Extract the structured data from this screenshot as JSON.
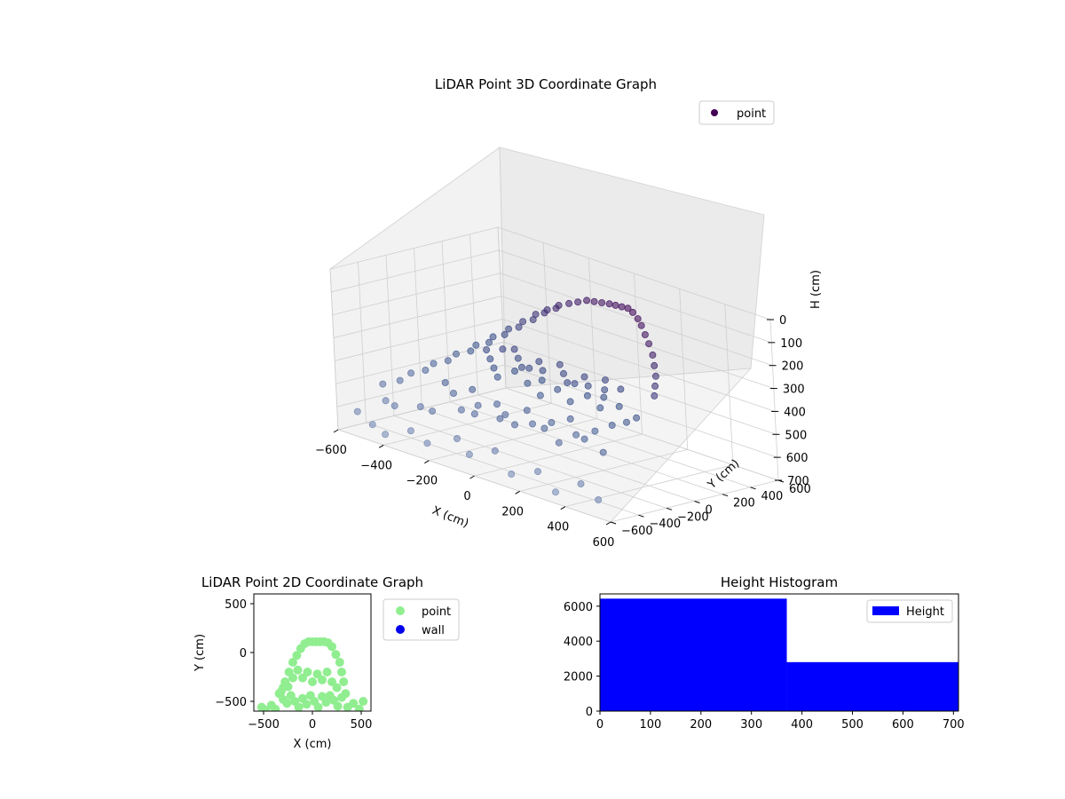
{
  "chart_data": [
    {
      "type": "scatter3d",
      "title": "LiDAR Point 3D Coordinate Graph",
      "xlabel": "X (cm)",
      "ylabel": "Y (cm)",
      "zlabel": "H (cm)",
      "xlim": [
        -600,
        600
      ],
      "ylim": [
        -600,
        600
      ],
      "zlim": [
        0,
        700
      ],
      "z_inverted": true,
      "x_ticks": [
        "-600",
        "-400",
        "-200",
        "0",
        "200",
        "400",
        "600"
      ],
      "y_ticks": [
        "-600",
        "-400",
        "-200",
        "0",
        "200",
        "400",
        "600"
      ],
      "z_ticks": [
        "0",
        "100",
        "200",
        "300",
        "400",
        "500",
        "600",
        "700"
      ],
      "grid": true,
      "legend_position": "top-right",
      "series": [
        {
          "name": "point",
          "color": "#440154",
          "colormap": "viridis",
          "points": [
            [
              -560,
              -520,
              620
            ],
            [
              -520,
              -380,
              580
            ],
            [
              -470,
              -560,
              640
            ],
            [
              -430,
              -460,
              560
            ],
            [
              -390,
              -600,
              650
            ],
            [
              -340,
              -420,
              540
            ],
            [
              -300,
              -560,
              610
            ],
            [
              -250,
              -480,
              520
            ],
            [
              -210,
              -590,
              630
            ],
            [
              -170,
              -400,
              500
            ],
            [
              -120,
              -520,
              590
            ],
            [
              -80,
              -450,
              480
            ],
            [
              -30,
              -580,
              620
            ],
            [
              20,
              -430,
              470
            ],
            [
              60,
              -540,
              580
            ],
            [
              110,
              -470,
              460
            ],
            [
              160,
              -590,
              640
            ],
            [
              210,
              -420,
              450
            ],
            [
              260,
              -560,
              600
            ],
            [
              310,
              -480,
              470
            ],
            [
              360,
              -600,
              650
            ],
            [
              400,
              -440,
              430
            ],
            [
              450,
              -560,
              590
            ],
            [
              500,
              -470,
              450
            ],
            [
              550,
              -600,
              620
            ],
            [
              -580,
              -300,
              540
            ],
            [
              -540,
              -160,
              500
            ],
            [
              -500,
              -60,
              460
            ],
            [
              -460,
              40,
              420
            ],
            [
              -420,
              120,
              380
            ],
            [
              -380,
              180,
              340
            ],
            [
              -340,
              230,
              300
            ],
            [
              -300,
              270,
              260
            ],
            [
              -260,
              300,
              220
            ],
            [
              -220,
              320,
              190
            ],
            [
              -180,
              340,
              160
            ],
            [
              -140,
              350,
              140
            ],
            [
              -100,
              350,
              120
            ],
            [
              -60,
              350,
              100
            ],
            [
              -20,
              340,
              90
            ],
            [
              20,
              330,
              80
            ],
            [
              60,
              320,
              70
            ],
            [
              100,
              300,
              60
            ],
            [
              140,
              280,
              50
            ],
            [
              180,
              260,
              40
            ],
            [
              220,
              230,
              40
            ],
            [
              260,
              200,
              50
            ],
            [
              300,
              160,
              60
            ],
            [
              340,
              120,
              80
            ],
            [
              380,
              80,
              100
            ],
            [
              420,
              40,
              130
            ],
            [
              450,
              0,
              160
            ],
            [
              480,
              -40,
              190
            ],
            [
              500,
              -80,
              220
            ],
            [
              520,
              -120,
              250
            ],
            [
              -540,
              -240,
              520
            ],
            [
              -500,
              -120,
              480
            ],
            [
              -460,
              -20,
              440
            ],
            [
              -420,
              80,
              400
            ],
            [
              -380,
              150,
              360
            ],
            [
              -340,
              200,
              320
            ],
            [
              -300,
              240,
              280
            ],
            [
              -260,
              280,
              240
            ],
            [
              -220,
              300,
              200
            ],
            [
              -180,
              320,
              170
            ],
            [
              -260,
              -60,
              320
            ],
            [
              -220,
              -100,
              340
            ],
            [
              -180,
              -140,
              360
            ],
            [
              -140,
              -180,
              380
            ],
            [
              -100,
              -120,
              350
            ],
            [
              -60,
              -80,
              330
            ],
            [
              -20,
              -160,
              370
            ],
            [
              20,
              -120,
              350
            ],
            [
              60,
              -200,
              390
            ],
            [
              100,
              -140,
              360
            ],
            [
              140,
              -80,
              330
            ],
            [
              180,
              -180,
              380
            ],
            [
              220,
              -120,
              350
            ],
            [
              260,
              -60,
              320
            ],
            [
              300,
              -160,
              370
            ],
            [
              -200,
              -40,
              300
            ],
            [
              -160,
              -20,
              290
            ],
            [
              -120,
              -60,
              310
            ],
            [
              -80,
              -100,
              330
            ],
            [
              -40,
              -40,
              300
            ],
            [
              0,
              -80,
              320
            ],
            [
              40,
              -20,
              290
            ],
            [
              80,
              -60,
              310
            ],
            [
              120,
              -100,
              330
            ],
            [
              160,
              -40,
              300
            ],
            [
              200,
              -80,
              320
            ],
            [
              240,
              -20,
              290
            ],
            [
              280,
              -100,
              340
            ],
            [
              320,
              -40,
              300
            ],
            [
              360,
              -120,
              350
            ],
            [
              -300,
              -300,
              440
            ],
            [
              -240,
              -340,
              460
            ],
            [
              -180,
              -300,
              430
            ],
            [
              -120,
              -360,
              470
            ],
            [
              -60,
              -320,
              450
            ],
            [
              0,
              -360,
              470
            ],
            [
              60,
              -300,
              440
            ],
            [
              120,
              -360,
              470
            ],
            [
              180,
              -320,
              450
            ],
            [
              240,
              -280,
              420
            ],
            [
              300,
              -340,
              460
            ],
            [
              360,
              -300,
              430
            ],
            [
              400,
              -240,
              400
            ],
            [
              440,
              -200,
              380
            ],
            [
              460,
              -160,
              360
            ]
          ]
        }
      ]
    },
    {
      "type": "scatter",
      "title": "LiDAR Point 2D Coordinate Graph",
      "xlabel": "X (cm)",
      "ylabel": "Y (cm)",
      "xlim": [
        -600,
        600
      ],
      "ylim": [
        -600,
        600
      ],
      "x_ticks": [
        "−500",
        "0",
        "500"
      ],
      "y_ticks": [
        "−500",
        "0",
        "500"
      ],
      "legend_position": "outside-right",
      "series": [
        {
          "name": "point",
          "color": "#90ee90",
          "points": [
            [
              -340,
              -420
            ],
            [
              -300,
              -480
            ],
            [
              -260,
              -520
            ],
            [
              -220,
              -440
            ],
            [
              -180,
              -500
            ],
            [
              -140,
              -560
            ],
            [
              -100,
              -470
            ],
            [
              -60,
              -530
            ],
            [
              -20,
              -440
            ],
            [
              20,
              -500
            ],
            [
              60,
              -560
            ],
            [
              100,
              -450
            ],
            [
              140,
              -510
            ],
            [
              180,
              -440
            ],
            [
              220,
              -490
            ],
            [
              260,
              -550
            ],
            [
              300,
              -460
            ],
            [
              340,
              -420
            ],
            [
              -420,
              -540
            ],
            [
              -380,
              -580
            ],
            [
              -480,
              -590
            ],
            [
              -520,
              -560
            ],
            [
              360,
              -560
            ],
            [
              420,
              -520
            ],
            [
              480,
              -580
            ],
            [
              520,
              -500
            ],
            [
              -280,
              -300
            ],
            [
              -240,
              -200
            ],
            [
              -200,
              -100
            ],
            [
              -160,
              -30
            ],
            [
              -120,
              40
            ],
            [
              -80,
              90
            ],
            [
              -40,
              110
            ],
            [
              0,
              110
            ],
            [
              40,
              110
            ],
            [
              80,
              110
            ],
            [
              120,
              110
            ],
            [
              160,
              100
            ],
            [
              200,
              60
            ],
            [
              240,
              -20
            ],
            [
              280,
              -100
            ],
            [
              300,
              -200
            ],
            [
              320,
              -300
            ],
            [
              -300,
              -360
            ],
            [
              -320,
              -400
            ],
            [
              -250,
              -350
            ],
            [
              -200,
              -260
            ],
            [
              -150,
              -180
            ],
            [
              -100,
              -260
            ],
            [
              -50,
              -200
            ],
            [
              0,
              -300
            ],
            [
              50,
              -220
            ],
            [
              100,
              -280
            ],
            [
              150,
              -200
            ],
            [
              200,
              -300
            ],
            [
              250,
              -360
            ]
          ]
        },
        {
          "name": "wall",
          "color": "#0000ee",
          "points": []
        }
      ]
    },
    {
      "type": "bar",
      "title": "Height Histogram",
      "xlim": [
        0,
        710
      ],
      "ylim": [
        0,
        6700
      ],
      "x_ticks": [
        "0",
        "100",
        "200",
        "300",
        "400",
        "500",
        "600",
        "700"
      ],
      "y_ticks": [
        "0",
        "2000",
        "4000",
        "6000"
      ],
      "legend_position": "top-right",
      "series": [
        {
          "name": "Height",
          "color": "#0000ff",
          "bins": [
            {
              "x0": 0,
              "x1": 370,
              "count": 6430
            },
            {
              "x0": 370,
              "x1": 710,
              "count": 2800
            }
          ]
        }
      ]
    }
  ]
}
